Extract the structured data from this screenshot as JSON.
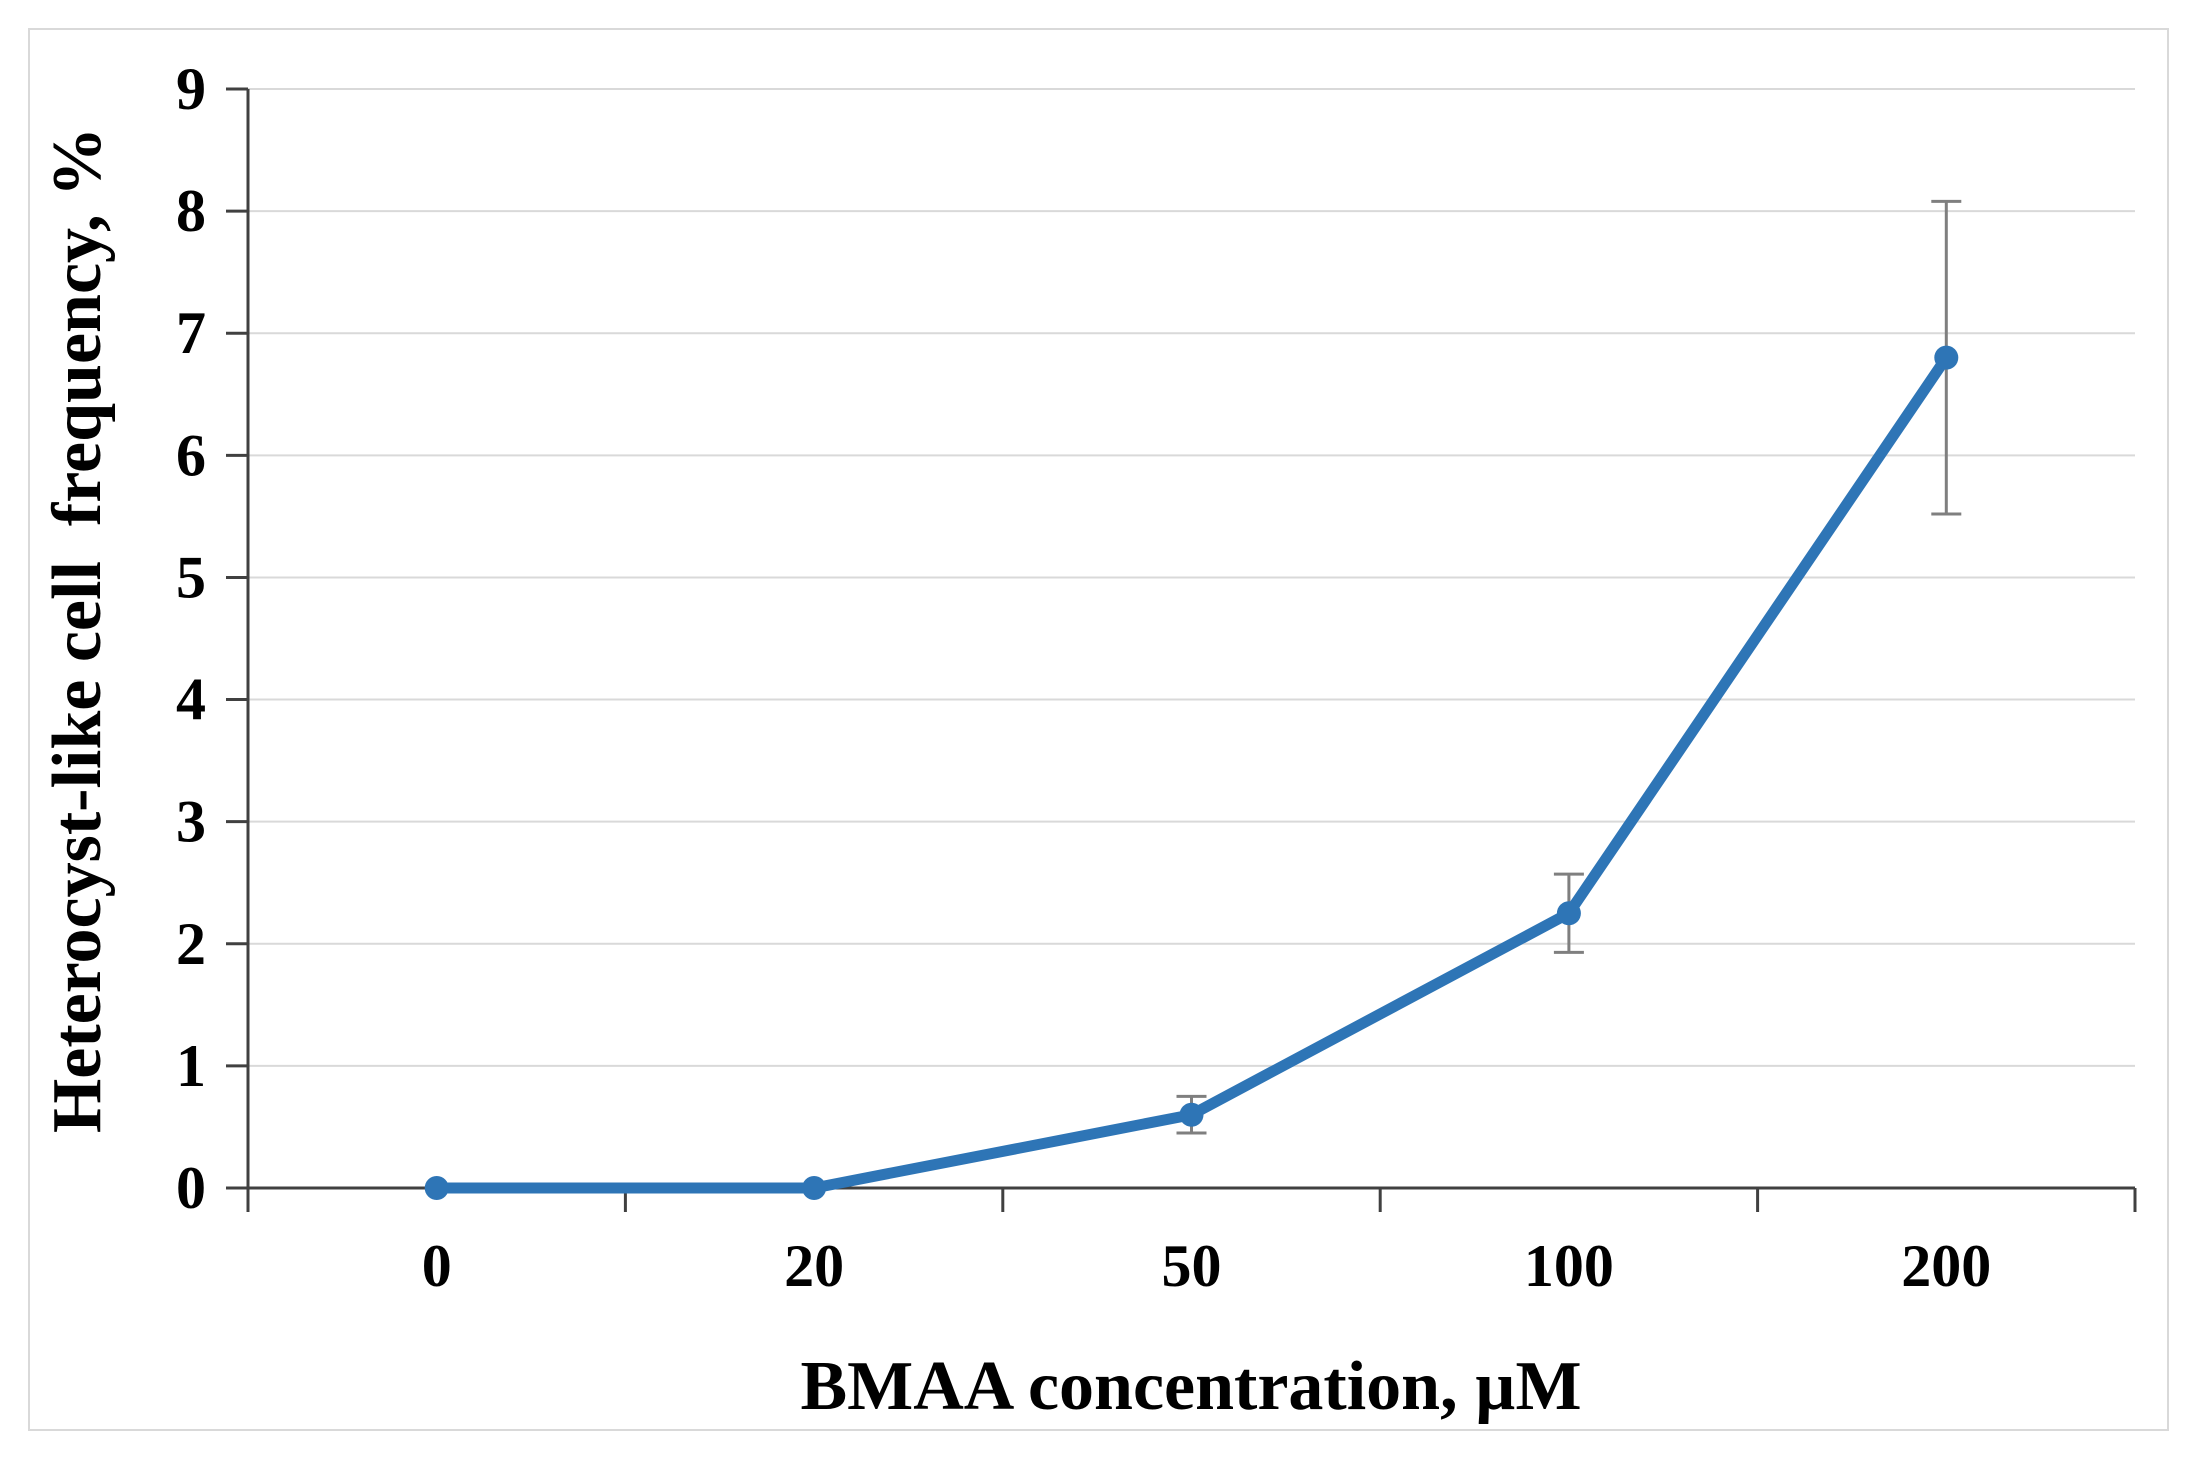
{
  "chart_data": {
    "type": "line",
    "title": "",
    "xlabel": "BMAA concentration, µM",
    "ylabel": "Heterocyst-like cell  frequency, %",
    "categories": [
      "0",
      "20",
      "50",
      "100",
      "200"
    ],
    "series": [
      {
        "name": "Heterocyst-like cell frequency",
        "values": [
          0,
          0,
          0.6,
          2.25,
          6.8
        ],
        "error_bars": [
          0,
          0,
          0.15,
          0.32,
          1.28
        ],
        "color": "#2E75B6"
      }
    ],
    "ylim": [
      0,
      9
    ],
    "ytick_step": 1,
    "ytick_labels": [
      "0",
      "1",
      "2",
      "3",
      "4",
      "5",
      "6",
      "7",
      "8",
      "9"
    ],
    "grid": "horizontal-only",
    "legend": "none",
    "marker": "circle",
    "colors": {
      "line": "#2E75B6",
      "error_bar": "#7F7F7F",
      "axis": "#404040",
      "gridline": "#D9D9D9",
      "frame": "#D9D9D9",
      "background": "#FFFFFF",
      "text": "#000000"
    }
  }
}
